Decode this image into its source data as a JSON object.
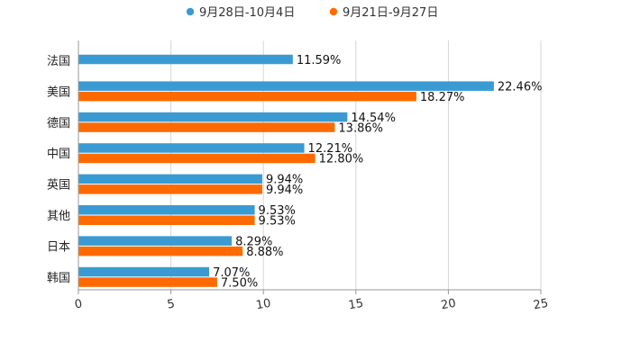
{
  "chart_data": {
    "type": "bar",
    "orientation": "horizontal",
    "title": "",
    "xlabel": "",
    "ylabel": "",
    "xlim": [
      0,
      25
    ],
    "x_ticks": [
      0,
      5,
      10,
      15,
      20,
      25
    ],
    "grid": true,
    "legend_position": "top-center",
    "categories": [
      "法国",
      "美国",
      "德国",
      "中国",
      "英国",
      "其他",
      "日本",
      "韩国"
    ],
    "series": [
      {
        "name": "9月28日-10月4日",
        "color": "#3a9bd2",
        "values": [
          11.59,
          22.46,
          14.54,
          12.21,
          9.94,
          9.53,
          8.29,
          7.07
        ],
        "labels": [
          "11.59%",
          "22.46%",
          "14.54%",
          "12.21%",
          "9.94%",
          "9.53%",
          "8.29%",
          "7.07%"
        ]
      },
      {
        "name": "9月21日-9月27日",
        "color": "#ff6a00",
        "values": [
          null,
          18.27,
          13.86,
          12.8,
          9.94,
          9.53,
          8.88,
          7.5
        ],
        "labels": [
          null,
          "18.27%",
          "13.86%",
          "12.80%",
          "9.94%",
          "9.53%",
          "8.88%",
          "7.50%"
        ]
      }
    ]
  }
}
